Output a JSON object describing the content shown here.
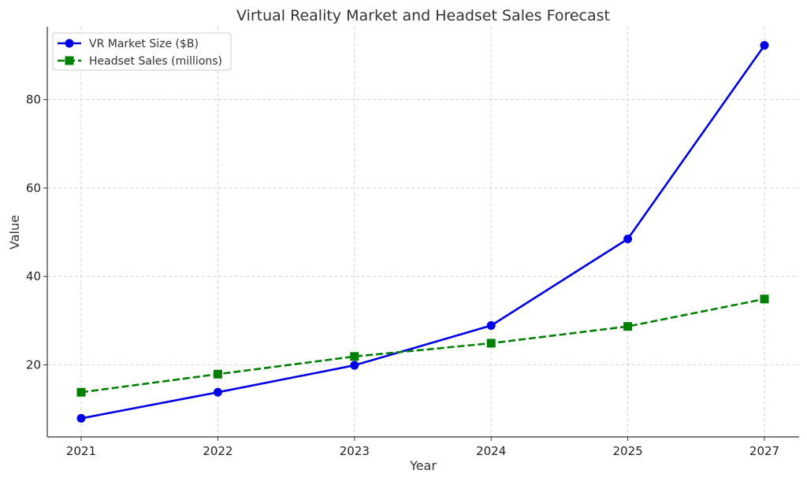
{
  "chart_data": {
    "type": "line",
    "title": "Virtual Reality Market and Headset Sales Forecast",
    "xlabel": "Year",
    "ylabel": "Value",
    "categories": [
      "2021",
      "2022",
      "2023",
      "2024",
      "2025",
      "2027"
    ],
    "ylim": [
      3.7,
      96.5
    ],
    "yticks": [
      20,
      40,
      60,
      80
    ],
    "grid": true,
    "legend_position": "top-left",
    "series": [
      {
        "name": "VR Market Size ($B)",
        "values": [
          7.9,
          13.8,
          19.9,
          28.9,
          48.5,
          92.3
        ],
        "color": "#0000e6",
        "marker": "circle",
        "line_style": "solid"
      },
      {
        "name": "Headset Sales (millions)",
        "values": [
          13.8,
          17.9,
          21.9,
          24.9,
          28.7,
          34.9
        ],
        "color": "#008000",
        "marker": "square",
        "line_style": "dashed"
      }
    ]
  }
}
